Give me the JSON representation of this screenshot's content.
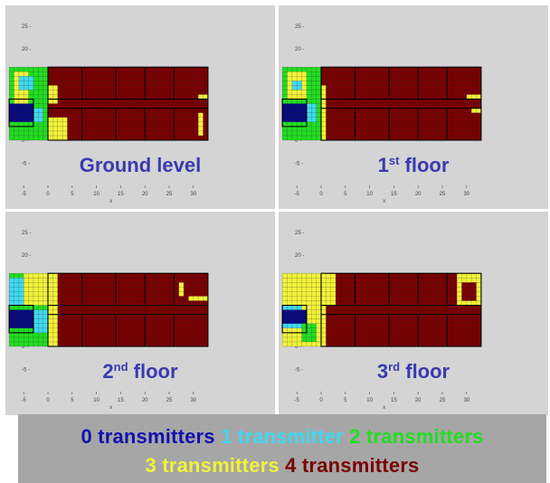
{
  "colors": {
    "panel_bg": "#d4d4d4",
    "tick_text": "#444444",
    "title_text": "#3a3ab0",
    "grid_line": "#222222",
    "outline": "#000000",
    "zero": "#0a0a80",
    "one": "#40d8f0",
    "two": "#22dd22",
    "three": "#f2f23a",
    "four": "#7a0000"
  },
  "legend": {
    "line1": [
      {
        "text": "0 transmitters",
        "color": "#1010b0"
      },
      {
        "text": "1 transmitter",
        "color": "#40d8f0"
      },
      {
        "text": "2 transmitters",
        "color": "#22dd22"
      }
    ],
    "line2": [
      {
        "text": "3 transmitters",
        "color": "#f2f23a"
      },
      {
        "text": "4 transmitters",
        "color": "#7a0000"
      }
    ]
  },
  "chart_data": [
    {
      "type": "heatmap",
      "title_main": "Ground level",
      "title_sup": "",
      "title_rest": "",
      "xlabel": "x",
      "ylabel": "y",
      "xticks": [
        "-5",
        "0",
        "5",
        "10",
        "15",
        "20",
        "25",
        "30"
      ],
      "yticks": [
        "25",
        "20",
        "15",
        "10",
        "5",
        "0",
        "-5"
      ],
      "xlim": [
        -9,
        35
      ],
      "ylim": [
        -10,
        27
      ],
      "value_scale": "number of transmitters received (0-4)",
      "regions": [
        {
          "x": [
            -8,
            0
          ],
          "y": [
            0,
            16
          ],
          "value": 2
        },
        {
          "x": [
            -7,
            -4
          ],
          "y": [
            8,
            15
          ],
          "value": 3
        },
        {
          "x": [
            -6,
            -3
          ],
          "y": [
            11,
            14
          ],
          "value": 1
        },
        {
          "x": [
            -8,
            -3
          ],
          "y": [
            4,
            8
          ],
          "value": 0
        },
        {
          "x": [
            -3,
            -1
          ],
          "y": [
            4,
            7
          ],
          "value": 1
        },
        {
          "x": [
            0,
            33
          ],
          "y": [
            0,
            16
          ],
          "value": 4
        },
        {
          "x": [
            0,
            4
          ],
          "y": [
            0,
            5
          ],
          "value": 3
        },
        {
          "x": [
            0,
            2
          ],
          "y": [
            8,
            12
          ],
          "value": 3
        },
        {
          "x": [
            31,
            33
          ],
          "y": [
            9,
            10
          ],
          "value": 3
        },
        {
          "x": [
            31,
            32
          ],
          "y": [
            1,
            6
          ],
          "value": 3
        }
      ]
    },
    {
      "type": "heatmap",
      "title_main": "1",
      "title_sup": "st",
      "title_rest": " floor",
      "xlabel": "x",
      "ylabel": "y",
      "xticks": [
        "-5",
        "0",
        "5",
        "10",
        "15",
        "20",
        "25",
        "30"
      ],
      "yticks": [
        "25",
        "20",
        "15",
        "10",
        "5",
        "0",
        "-5"
      ],
      "xlim": [
        -9,
        35
      ],
      "ylim": [
        -10,
        27
      ],
      "value_scale": "number of transmitters received (0-4)",
      "regions": [
        {
          "x": [
            -8,
            0
          ],
          "y": [
            0,
            16
          ],
          "value": 2
        },
        {
          "x": [
            -7,
            -3
          ],
          "y": [
            9,
            15
          ],
          "value": 3
        },
        {
          "x": [
            -6,
            -4
          ],
          "y": [
            11,
            13
          ],
          "value": 1
        },
        {
          "x": [
            -8,
            -3
          ],
          "y": [
            4,
            8
          ],
          "value": 0
        },
        {
          "x": [
            -3,
            -1
          ],
          "y": [
            4,
            8
          ],
          "value": 1
        },
        {
          "x": [
            0,
            33
          ],
          "y": [
            0,
            16
          ],
          "value": 4
        },
        {
          "x": [
            0,
            1
          ],
          "y": [
            0,
            12
          ],
          "value": 3
        },
        {
          "x": [
            30,
            33
          ],
          "y": [
            9,
            10
          ],
          "value": 3
        },
        {
          "x": [
            31,
            33
          ],
          "y": [
            6,
            7
          ],
          "value": 3
        }
      ]
    },
    {
      "type": "heatmap",
      "title_main": "2",
      "title_sup": "nd",
      "title_rest": " floor",
      "xlabel": "x",
      "ylabel": "y",
      "xticks": [
        "-5",
        "0",
        "5",
        "10",
        "15",
        "20",
        "25",
        "30"
      ],
      "yticks": [
        "25",
        "20",
        "15",
        "10",
        "5",
        "0",
        "-5"
      ],
      "xlim": [
        -9,
        35
      ],
      "ylim": [
        -10,
        27
      ],
      "value_scale": "number of transmitters received (0-4)",
      "regions": [
        {
          "x": [
            -8,
            0
          ],
          "y": [
            0,
            16
          ],
          "value": 2
        },
        {
          "x": [
            -5,
            0
          ],
          "y": [
            9,
            16
          ],
          "value": 3
        },
        {
          "x": [
            -8,
            -5
          ],
          "y": [
            9,
            15
          ],
          "value": 1
        },
        {
          "x": [
            -8,
            -3
          ],
          "y": [
            4,
            8
          ],
          "value": 0
        },
        {
          "x": [
            -3,
            0
          ],
          "y": [
            3,
            8
          ],
          "value": 1
        },
        {
          "x": [
            0,
            33
          ],
          "y": [
            0,
            16
          ],
          "value": 4
        },
        {
          "x": [
            0,
            2
          ],
          "y": [
            0,
            16
          ],
          "value": 3
        },
        {
          "x": [
            29,
            33
          ],
          "y": [
            10,
            11
          ],
          "value": 3
        },
        {
          "x": [
            27,
            28
          ],
          "y": [
            11,
            14
          ],
          "value": 3
        }
      ]
    },
    {
      "type": "heatmap",
      "title_main": "3",
      "title_sup": "rd",
      "title_rest": " floor",
      "xlabel": "x",
      "ylabel": "y",
      "xticks": [
        "-5",
        "0",
        "5",
        "10",
        "15",
        "20",
        "25",
        "30"
      ],
      "yticks": [
        "25",
        "20",
        "15",
        "10",
        "5",
        "0",
        "-5"
      ],
      "xlim": [
        -9,
        35
      ],
      "ylim": [
        -10,
        27
      ],
      "value_scale": "number of transmitters received (0-4)",
      "regions": [
        {
          "x": [
            -8,
            0
          ],
          "y": [
            0,
            16
          ],
          "value": 3
        },
        {
          "x": [
            -8,
            -4
          ],
          "y": [
            4,
            9
          ],
          "value": 1
        },
        {
          "x": [
            -8,
            -3
          ],
          "y": [
            5,
            8
          ],
          "value": 0
        },
        {
          "x": [
            -4,
            -1
          ],
          "y": [
            1,
            5
          ],
          "value": 2
        },
        {
          "x": [
            0,
            33
          ],
          "y": [
            0,
            16
          ],
          "value": 4
        },
        {
          "x": [
            0,
            3
          ],
          "y": [
            9,
            16
          ],
          "value": 3
        },
        {
          "x": [
            0,
            1
          ],
          "y": [
            0,
            9
          ],
          "value": 3
        },
        {
          "x": [
            28,
            33
          ],
          "y": [
            9,
            16
          ],
          "value": 3
        },
        {
          "x": [
            29,
            32
          ],
          "y": [
            10,
            14
          ],
          "value": 4
        }
      ]
    }
  ]
}
